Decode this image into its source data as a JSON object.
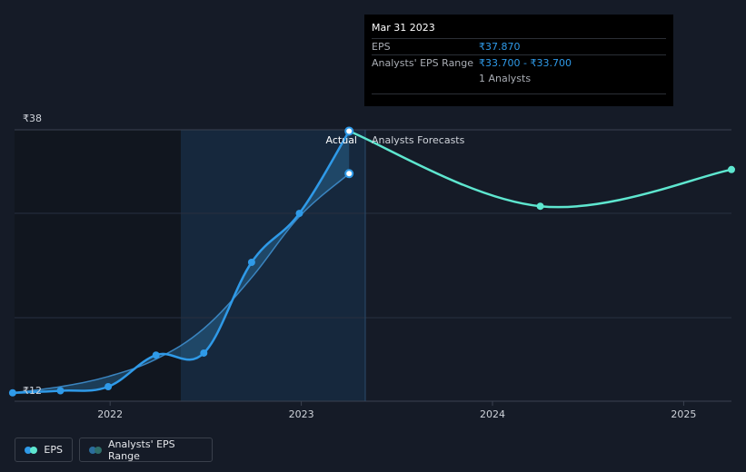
{
  "chart_data": {
    "type": "line",
    "y_ticks": [
      {
        "value": 38,
        "label": "₹38"
      },
      {
        "value": 12,
        "label": "₹12"
      }
    ],
    "x_ticks": [
      {
        "value": 2022.0,
        "label": "2022"
      },
      {
        "value": 2023.0,
        "label": "2023"
      },
      {
        "value": 2024.0,
        "label": "2024"
      },
      {
        "value": 2025.0,
        "label": "2025"
      }
    ],
    "xlim": [
      2021.5,
      2025.25
    ],
    "ylim": [
      12,
      38
    ],
    "section_labels": {
      "actual": "Actual",
      "forecast": "Analysts Forecasts"
    },
    "series": [
      {
        "name": "EPS",
        "color": "#2f9ae8",
        "points": [
          {
            "x": 2021.49,
            "y": 12.2
          },
          {
            "x": 2021.74,
            "y": 12.4
          },
          {
            "x": 2021.99,
            "y": 12.8
          },
          {
            "x": 2022.24,
            "y": 15.9
          },
          {
            "x": 2022.49,
            "y": 16.1
          },
          {
            "x": 2022.74,
            "y": 25.0
          },
          {
            "x": 2022.99,
            "y": 29.8
          },
          {
            "x": 2023.25,
            "y": 37.87
          }
        ]
      },
      {
        "name": "Analysts' EPS Range",
        "color": "#2b6d9c",
        "points": [
          {
            "x": 2021.49,
            "y": 12.2
          },
          {
            "x": 2021.74,
            "y": 12.8
          },
          {
            "x": 2021.99,
            "y": 13.8
          },
          {
            "x": 2022.24,
            "y": 15.5
          },
          {
            "x": 2022.49,
            "y": 18.5
          },
          {
            "x": 2022.74,
            "y": 23.5
          },
          {
            "x": 2022.99,
            "y": 29.5
          },
          {
            "x": 2023.25,
            "y": 33.7
          }
        ]
      },
      {
        "name": "Forecast",
        "color": "#5ee6cf",
        "points": [
          {
            "x": 2023.25,
            "y": 37.87
          },
          {
            "x": 2024.25,
            "y": 30.5
          },
          {
            "x": 2025.25,
            "y": 34.1
          }
        ]
      }
    ],
    "tooltip": {
      "date": "Mar 31 2023",
      "rows": [
        {
          "key": "EPS",
          "value": "₹37.870"
        },
        {
          "key": "Analysts' EPS Range",
          "value": "₹33.700 - ₹33.700"
        }
      ],
      "analysts": "1 Analysts"
    },
    "legend": [
      {
        "label": "EPS",
        "colors": [
          "#2f9ae8",
          "#5ee6cf"
        ]
      },
      {
        "label": "Analysts' EPS Range",
        "colors": [
          "#2b6d9c",
          "#2f6e6a"
        ]
      }
    ]
  }
}
